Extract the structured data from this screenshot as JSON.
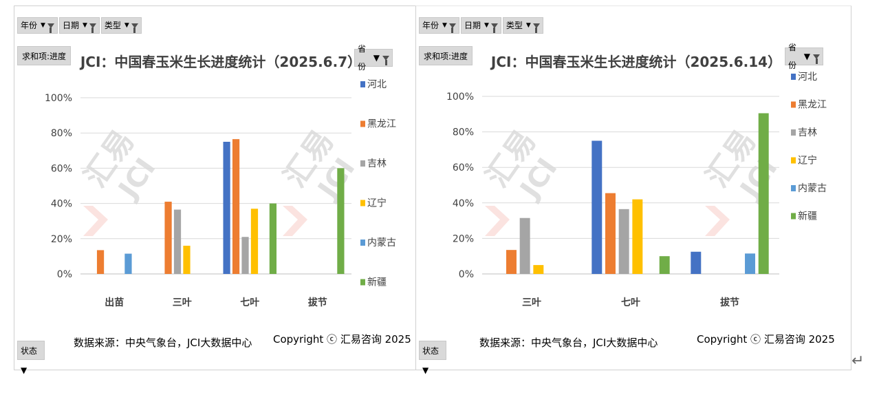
{
  "filters": {
    "year": "年份",
    "date": "日期",
    "type": "类型",
    "value_field": "求和项:进度",
    "legend_field": "省份",
    "state": "状态"
  },
  "footer": {
    "source": "数据来源：中央气象台，JCI大数据中心",
    "copyright": "Copyright ⓒ 汇易咨询 2025"
  },
  "watermark": {
    "text": "汇易",
    "subtext": "JCI",
    "color": "#e0e0e0"
  },
  "colors": {
    "河北": "#4472c4",
    "黑龙江": "#ed7d31",
    "吉林": "#a5a5a5",
    "辽宁": "#ffc000",
    "内蒙古": "#5b9bd5",
    "新疆": "#70ad47"
  },
  "chart_data": [
    {
      "type": "bar",
      "title": "JCI：中国春玉米生长进度统计（2025.6.7）",
      "categories": [
        "出苗",
        "三叶",
        "七叶",
        "拔节"
      ],
      "ylim": [
        0,
        100
      ],
      "yticks": [
        "0%",
        "20%",
        "40%",
        "60%",
        "80%",
        "100%"
      ],
      "grid": true,
      "legend_position": "right",
      "series": [
        {
          "name": "河北",
          "values": [
            null,
            null,
            75,
            null
          ]
        },
        {
          "name": "黑龙江",
          "values": [
            13.5,
            41,
            76.5,
            null
          ]
        },
        {
          "name": "吉林",
          "values": [
            null,
            36.5,
            21,
            null
          ]
        },
        {
          "name": "辽宁",
          "values": [
            null,
            16,
            37,
            null
          ]
        },
        {
          "name": "内蒙古",
          "values": [
            11.5,
            null,
            null,
            null
          ]
        },
        {
          "name": "新疆",
          "values": [
            null,
            null,
            40,
            60
          ]
        }
      ]
    },
    {
      "type": "bar",
      "title": "JCI：中国春玉米生长进度统计（2025.6.14）",
      "categories": [
        "三叶",
        "七叶",
        "拔节"
      ],
      "ylim": [
        0,
        100
      ],
      "yticks": [
        "0%",
        "20%",
        "40%",
        "60%",
        "80%",
        "100%"
      ],
      "grid": true,
      "legend_position": "right",
      "series": [
        {
          "name": "河北",
          "values": [
            null,
            75,
            12.5
          ]
        },
        {
          "name": "黑龙江",
          "values": [
            13.5,
            45.5,
            null
          ]
        },
        {
          "name": "吉林",
          "values": [
            31.5,
            36.5,
            null
          ]
        },
        {
          "name": "辽宁",
          "values": [
            5,
            42,
            null
          ]
        },
        {
          "name": "内蒙古",
          "values": [
            null,
            null,
            11.5
          ]
        },
        {
          "name": "新疆",
          "values": [
            null,
            10,
            90.5
          ]
        }
      ]
    }
  ]
}
